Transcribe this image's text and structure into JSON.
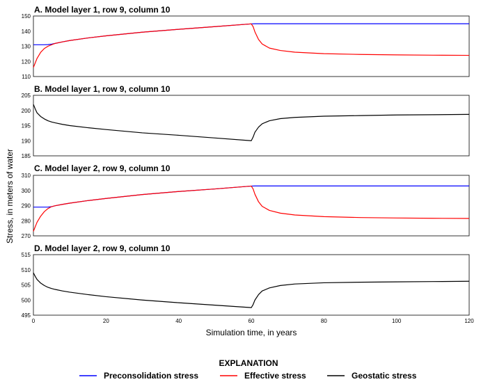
{
  "chart_data": {
    "type": "line",
    "ylabel": "Stress, in meters of water",
    "xlabel": "Simulation time, in years",
    "xlim": [
      0,
      120
    ],
    "xticks": [
      0,
      20,
      40,
      60,
      80,
      100,
      120
    ],
    "grid": false,
    "legend": {
      "title": "EXPLANATION",
      "placement": "bottom-center",
      "entries": [
        {
          "label": "Preconsolidation stress",
          "color": "#0000ff"
        },
        {
          "label": "Effective stress",
          "color": "#ff0000"
        },
        {
          "label": "Geostatic stress",
          "color": "#000000"
        }
      ]
    },
    "panels": [
      {
        "title": "A. Model layer 1, row 9, column 10",
        "ylim": [
          110,
          150
        ],
        "yticks": [
          110,
          120,
          130,
          140,
          150
        ],
        "series": [
          {
            "key": "preconsolidation",
            "color": "#0000ff",
            "x": [
              0,
              3,
              4,
              5,
              6,
              8,
              10,
              15,
              20,
              30,
              40,
              50,
              60,
              61,
              70,
              80,
              90,
              100,
              110,
              120
            ],
            "y": [
              131,
              131,
              131.1,
              131.4,
              131.9,
              132.9,
              133.8,
              135.5,
              136.9,
              139.3,
              141.2,
              143.0,
              144.8,
              144.9,
              144.9,
              144.9,
              144.9,
              144.9,
              144.9,
              144.9
            ]
          },
          {
            "key": "effective",
            "color": "#ff0000",
            "x": [
              0,
              0.5,
              1,
              2,
              3,
              4,
              5,
              6,
              8,
              10,
              15,
              20,
              30,
              40,
              50,
              60,
              60.5,
              61,
              62,
              63,
              65,
              68,
              72,
              80,
              90,
              100,
              110,
              120
            ],
            "y": [
              116,
              119,
              122,
              126,
              128.5,
              130,
              131,
              131.9,
              132.9,
              133.8,
              135.5,
              136.9,
              139.3,
              141.2,
              143.0,
              144.8,
              143,
              139.5,
              134.5,
              131.5,
              128.8,
              127.2,
              126.1,
              125.1,
              124.6,
              124.3,
              124.1,
              124.0
            ]
          }
        ]
      },
      {
        "title": "B. Model layer 1, row 9, column 10",
        "ylim": [
          185,
          205
        ],
        "yticks": [
          185,
          190,
          195,
          200,
          205
        ],
        "series": [
          {
            "key": "geostatic",
            "color": "#000000",
            "x": [
              0,
              0.5,
              1,
              2,
              3,
              4,
              5,
              6,
              8,
              10,
              15,
              20,
              30,
              40,
              50,
              60,
              60.5,
              61,
              62,
              63,
              65,
              68,
              72,
              80,
              90,
              100,
              110,
              120
            ],
            "y": [
              202,
              200.5,
              199.2,
              198,
              197.2,
              196.6,
              196.2,
              195.9,
              195.4,
              195.0,
              194.3,
              193.7,
              192.6,
              191.8,
              190.9,
              190.0,
              191.2,
              192.8,
              194.5,
              195.6,
              196.6,
              197.3,
              197.7,
              198.1,
              198.3,
              198.5,
              198.6,
              198.7
            ]
          }
        ]
      },
      {
        "title": "C. Model layer 2, row 9, column 10",
        "ylim": [
          270,
          310
        ],
        "yticks": [
          270,
          280,
          290,
          300,
          310
        ],
        "series": [
          {
            "key": "preconsolidation",
            "color": "#0000ff",
            "x": [
              0,
              4,
              5,
              6,
              8,
              10,
              15,
              20,
              30,
              40,
              50,
              60,
              61,
              70,
              80,
              90,
              100,
              110,
              120
            ],
            "y": [
              289,
              289,
              289.3,
              289.9,
              290.8,
              291.6,
              293.3,
              294.7,
              297.3,
              299.3,
              301.0,
              302.9,
              303.0,
              303.0,
              303.0,
              303.0,
              303.0,
              303.0,
              303.0
            ]
          },
          {
            "key": "effective",
            "color": "#ff0000",
            "x": [
              0,
              0.5,
              1,
              2,
              3,
              4,
              5,
              6,
              8,
              10,
              15,
              20,
              30,
              40,
              50,
              60,
              60.5,
              61,
              62,
              63,
              65,
              68,
              72,
              80,
              90,
              100,
              110,
              120
            ],
            "y": [
              273,
              276,
              279,
              283,
              286,
              288,
              289.3,
              289.9,
              290.8,
              291.6,
              293.3,
              294.7,
              297.3,
              299.3,
              301.0,
              302.9,
              301,
              297.5,
              292.5,
              289.5,
              286.8,
              285.0,
              283.8,
              282.7,
              282.1,
              281.8,
              281.6,
              281.5
            ]
          }
        ]
      },
      {
        "title": "D. Model layer 2, row 9, column 10",
        "ylim": [
          495,
          515
        ],
        "yticks": [
          495,
          500,
          505,
          510,
          515
        ],
        "series": [
          {
            "key": "geostatic",
            "color": "#000000",
            "x": [
              0,
              0.5,
              1,
              2,
              3,
              4,
              5,
              6,
              8,
              10,
              15,
              20,
              30,
              40,
              50,
              60,
              60.5,
              61,
              62,
              63,
              65,
              68,
              72,
              80,
              90,
              100,
              110,
              120
            ],
            "y": [
              509,
              507.8,
              506.8,
              505.6,
              504.8,
              504.2,
              503.8,
              503.5,
              503.0,
              502.6,
              501.8,
              501.1,
              500.0,
              499.1,
              498.3,
              497.5,
              498.5,
              500.0,
              501.8,
              503.0,
              504.0,
              504.8,
              505.3,
              505.7,
              505.9,
              506.0,
              506.1,
              506.2
            ]
          }
        ]
      }
    ]
  }
}
